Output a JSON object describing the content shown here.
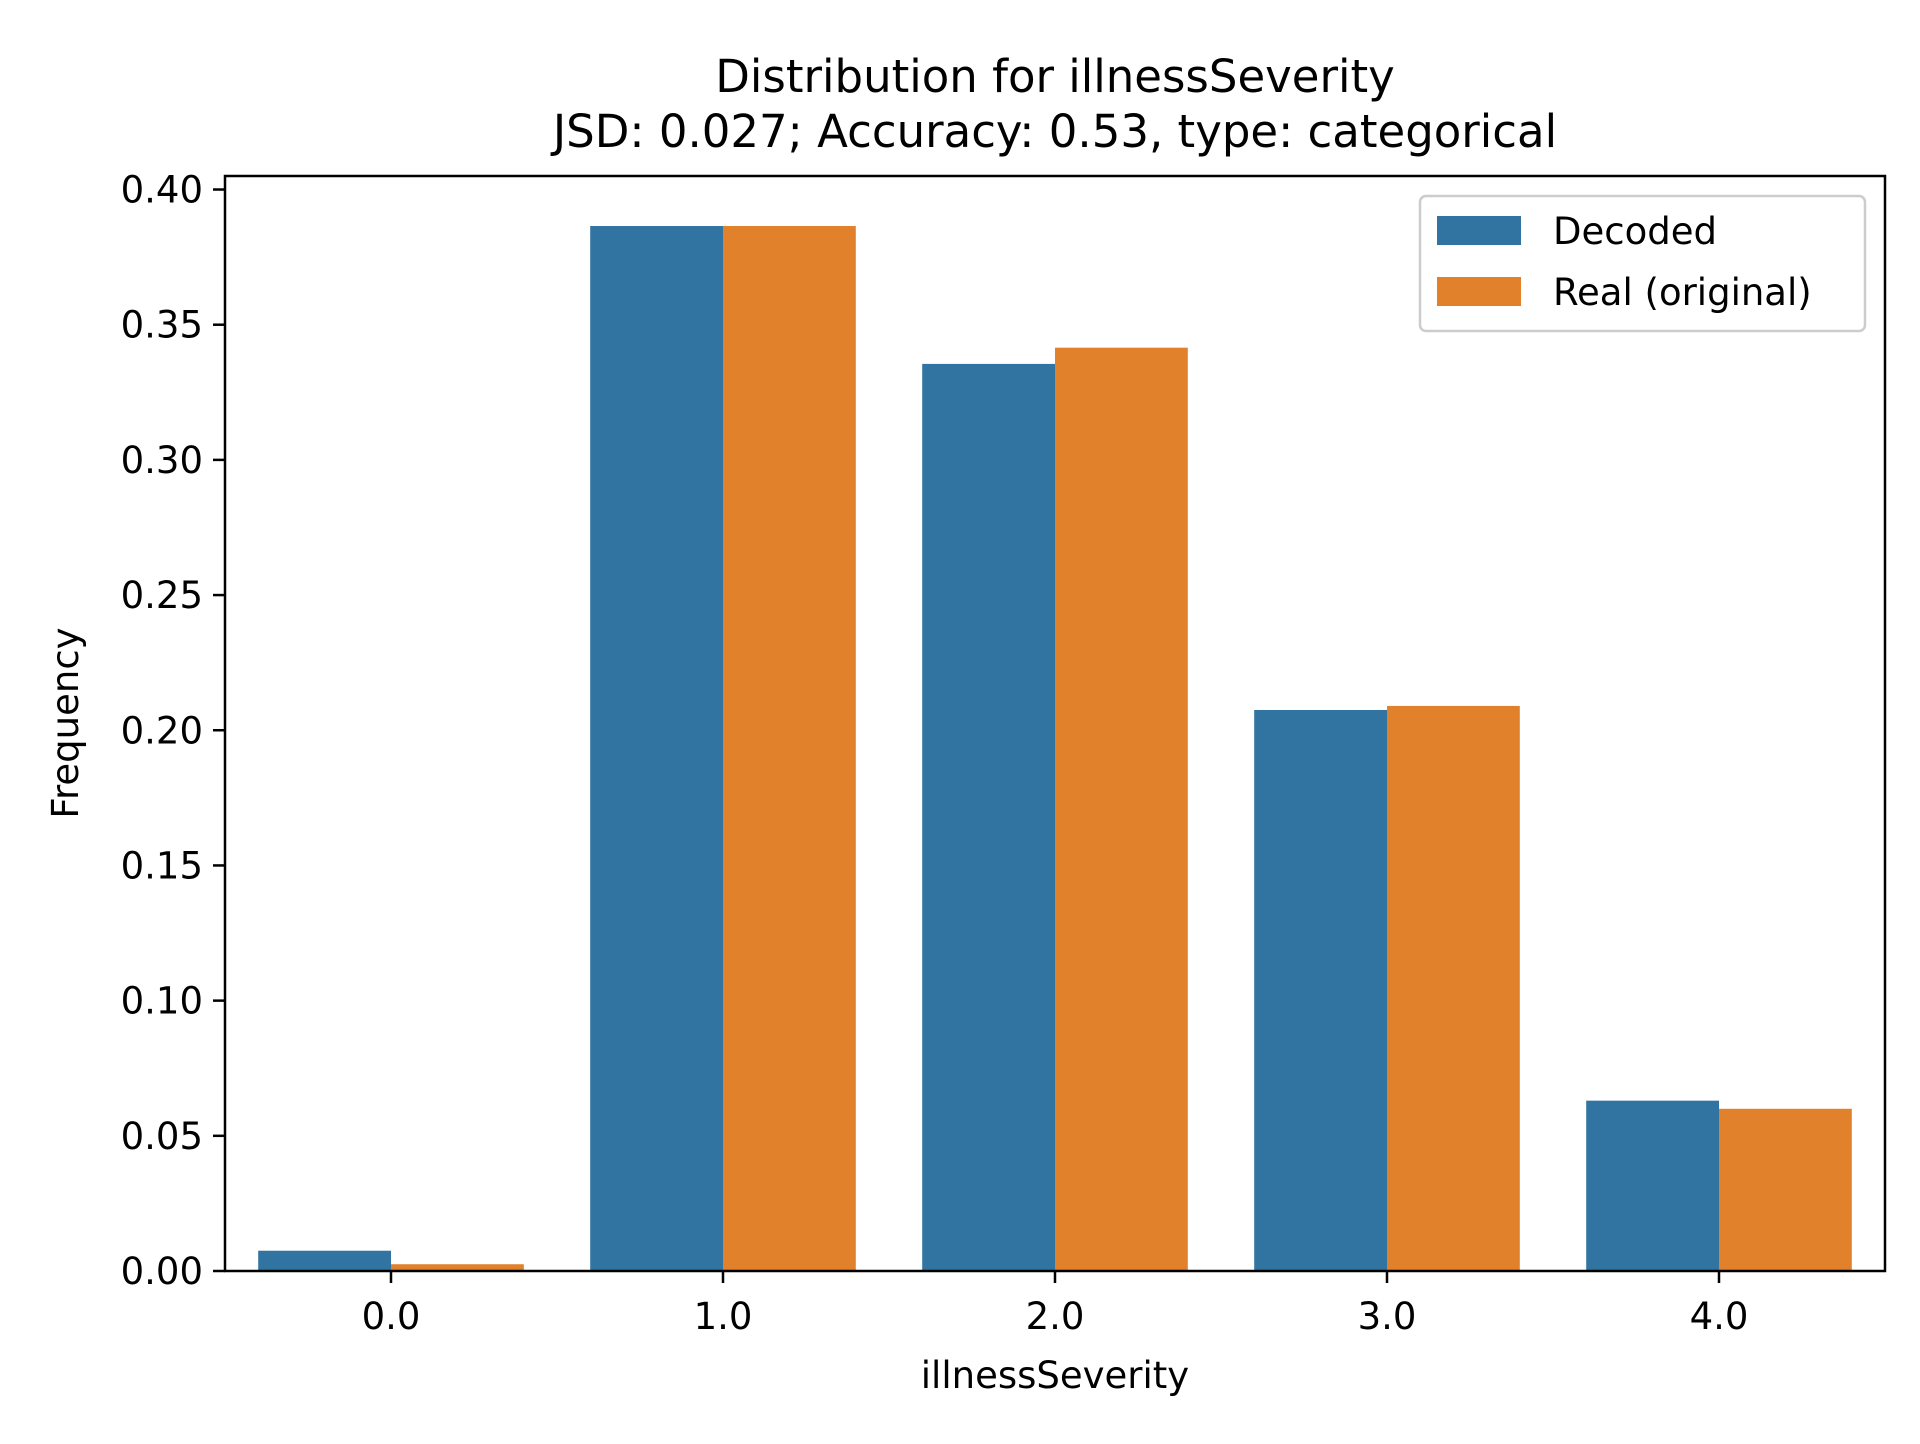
{
  "chart_data": {
    "type": "bar",
    "title": "Distribution for illnessSeverity",
    "subtitle": "JSD: 0.027; Accuracy: 0.53, type: categorical",
    "xlabel": "illnessSeverity",
    "ylabel": "Frequency",
    "categories": [
      "0.0",
      "1.0",
      "2.0",
      "3.0",
      "4.0"
    ],
    "series": [
      {
        "name": "Decoded",
        "color": "#3274a1",
        "values": [
          0.0075,
          0.3865,
          0.3355,
          0.2075,
          0.063
        ]
      },
      {
        "name": "Real (original)",
        "color": "#e1812c",
        "values": [
          0.0025,
          0.3865,
          0.3415,
          0.209,
          0.06
        ]
      }
    ],
    "ylim": [
      0,
      0.405
    ],
    "yticks": [
      "0.00",
      "0.05",
      "0.10",
      "0.15",
      "0.20",
      "0.25",
      "0.30",
      "0.35",
      "0.40"
    ],
    "legend_position": "top-right",
    "grid": false
  }
}
